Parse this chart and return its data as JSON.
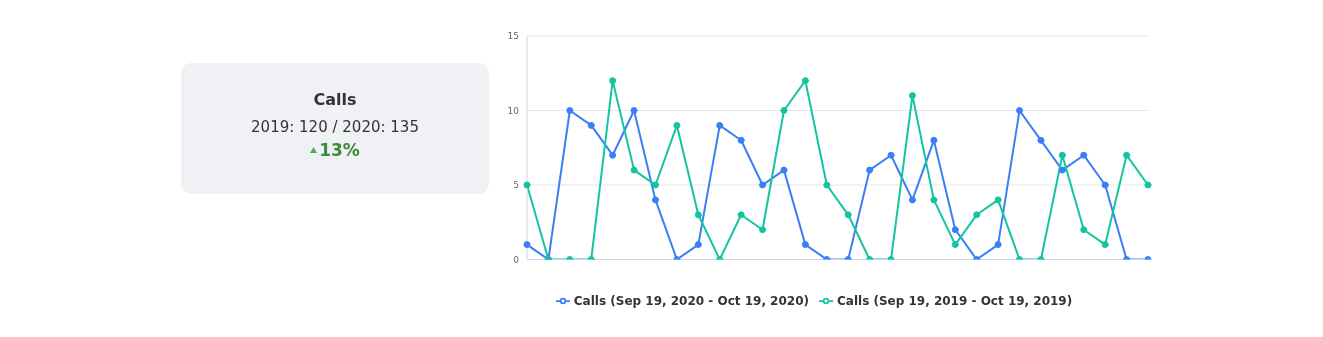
{
  "chart_data": [
    {
      "type": "other",
      "title": "Calls",
      "subtitle": "2019: 120 / 2020: 135",
      "annotations": [
        "13%"
      ]
    },
    {
      "type": "line",
      "categories": [
        null,
        null,
        null,
        null,
        null,
        null,
        null,
        null,
        null,
        null,
        null,
        null,
        null,
        null,
        null,
        null,
        null,
        null,
        null,
        null,
        null,
        null,
        null,
        null,
        null,
        null,
        null,
        null,
        null,
        null
      ],
      "series": [
        {
          "name": "Calls (Sep 19, 2020 - Oct 19, 2020)",
          "color": "#3a7ff6",
          "values": [
            1,
            0,
            10,
            9,
            7,
            10,
            4,
            0,
            1,
            9,
            8,
            5,
            6,
            1,
            0,
            0,
            6,
            7,
            4,
            8,
            2,
            0,
            1,
            10,
            8,
            6,
            7,
            5,
            0,
            0
          ]
        },
        {
          "name": "Calls (Sep 19, 2019 - Oct 19, 2019)",
          "color": "#13c4a1",
          "values": [
            5,
            0,
            0,
            0,
            12,
            6,
            5,
            9,
            3,
            0,
            3,
            2,
            10,
            12,
            5,
            3,
            0,
            0,
            11,
            4,
            1,
            3,
            4,
            0,
            0,
            7,
            2,
            1,
            7,
            5
          ]
        }
      ],
      "ylim": [
        0,
        15
      ],
      "yticks": [
        0,
        5,
        10,
        15
      ],
      "grid": "y",
      "legend": "bottom",
      "marker": "circle",
      "line_style": "solid"
    }
  ]
}
